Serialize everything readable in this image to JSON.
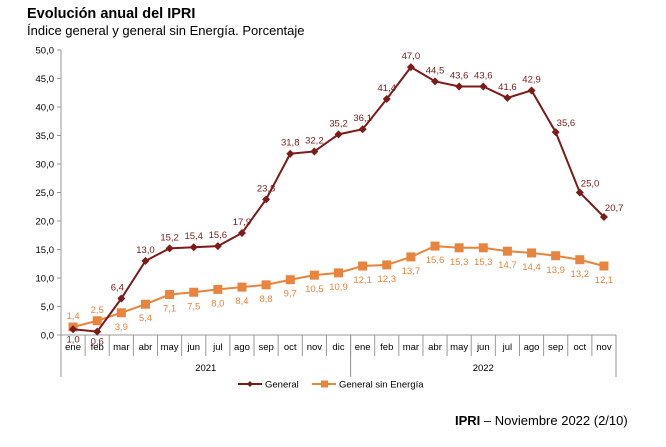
{
  "header": {
    "title": "Evolución anual del IPRI",
    "subtitle": "Índice general y general sin Energía. Porcentaje"
  },
  "footer": {
    "bold": "IPRI",
    "text": " – Noviembre 2022 (2/10)"
  },
  "colors": {
    "general": "#7d1a1a",
    "sin_energia": "#e8843e",
    "axis": "#999999"
  },
  "chart_data": {
    "type": "line",
    "title": "Evolución anual del IPRI",
    "subtitle": "Índice general y general sin Energía. Porcentaje",
    "xlabel": "",
    "ylabel": "",
    "ylim": [
      0,
      50
    ],
    "yticks": [
      0,
      5,
      10,
      15,
      20,
      25,
      30,
      35,
      40,
      45,
      50
    ],
    "ytick_labels": [
      "0,0",
      "5,0",
      "10,0",
      "15,0",
      "20,0",
      "25,0",
      "30,0",
      "35,0",
      "40,0",
      "45,0",
      "50,0"
    ],
    "grid": false,
    "legend_position": "bottom",
    "categories": [
      "ene",
      "feb",
      "mar",
      "abr",
      "may",
      "jun",
      "jul",
      "ago",
      "sep",
      "oct",
      "nov",
      "dic",
      "ene",
      "feb",
      "mar",
      "abr",
      "may",
      "jun",
      "jul",
      "ago",
      "sep",
      "oct",
      "nov"
    ],
    "year_groups": [
      {
        "label": "2021",
        "count": 12
      },
      {
        "label": "2022",
        "count": 11
      }
    ],
    "series": [
      {
        "name": "General",
        "marker": "diamond",
        "values": [
          1.0,
          0.6,
          6.4,
          13.0,
          15.2,
          15.4,
          15.6,
          17.9,
          23.8,
          31.8,
          32.2,
          35.2,
          36.1,
          41.4,
          47.0,
          44.5,
          43.6,
          43.6,
          41.6,
          42.9,
          35.6,
          25.0,
          20.7
        ],
        "labels": [
          "1,0",
          "0,6",
          "6,4",
          "13,0",
          "15,2",
          "15,4",
          "15,6",
          "17,9",
          "23,8",
          "31,8",
          "32,2",
          "35,2",
          "36,1",
          "41,4",
          "47,0",
          "44,5",
          "43,6",
          "43,6",
          "41,6",
          "42,9",
          "35,6",
          "25,0",
          "20,7"
        ]
      },
      {
        "name": "General sin Energía",
        "marker": "square",
        "values": [
          1.4,
          2.5,
          3.9,
          5.4,
          7.1,
          7.5,
          8.0,
          8.4,
          8.8,
          9.7,
          10.5,
          10.9,
          12.1,
          12.3,
          13.7,
          15.6,
          15.3,
          15.3,
          14.7,
          14.4,
          13.9,
          13.2,
          12.1
        ],
        "labels": [
          "1,4",
          "2,5",
          "3,9",
          "5,4",
          "7,1",
          "7,5",
          "8,0",
          "8,4",
          "8,8",
          "9,7",
          "10,5",
          "10,9",
          "12,1",
          "12,3",
          "13,7",
          "15,6",
          "15,3",
          "15,3",
          "14,7",
          "14,4",
          "13,9",
          "13,2",
          "12,1"
        ]
      }
    ]
  }
}
